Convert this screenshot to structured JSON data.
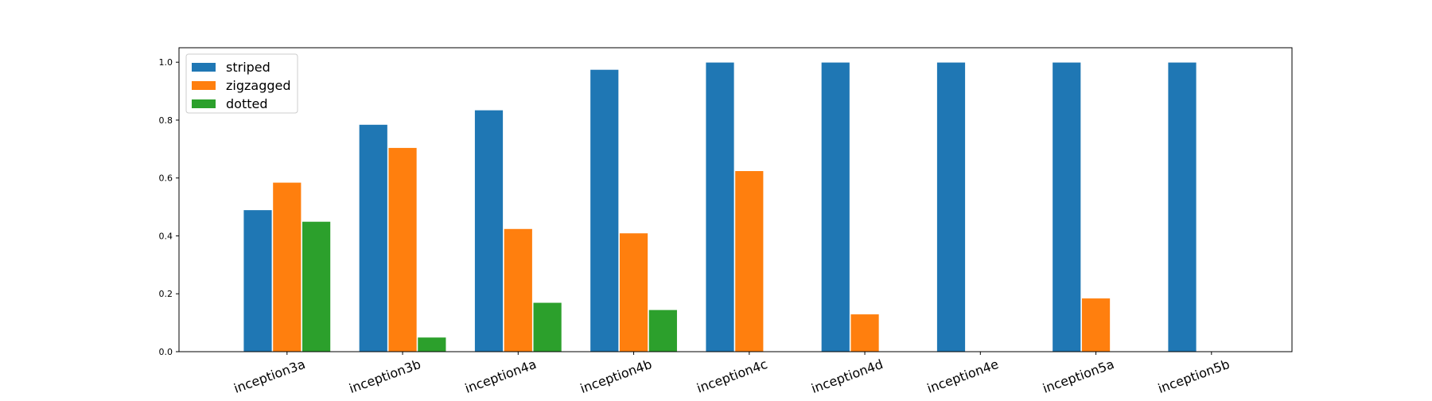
{
  "chart_data": {
    "type": "bar",
    "categories": [
      "inception3a",
      "inception3b",
      "inception4a",
      "inception4b",
      "inception4c",
      "inception4d",
      "inception4e",
      "inception5a",
      "inception5b"
    ],
    "series": [
      {
        "name": "striped",
        "color": "#1f77b4",
        "values": [
          0.49,
          0.785,
          0.835,
          0.975,
          1.0,
          1.0,
          1.0,
          1.0,
          1.0
        ]
      },
      {
        "name": "zigzagged",
        "color": "#ff7f0e",
        "values": [
          0.585,
          0.705,
          0.425,
          0.41,
          0.625,
          0.13,
          0.0,
          0.185,
          0.0
        ]
      },
      {
        "name": "dotted",
        "color": "#2ca02c",
        "values": [
          0.45,
          0.05,
          0.17,
          0.145,
          0.0,
          0.0,
          0.0,
          0.0,
          0.0
        ]
      }
    ],
    "yticks": [
      "0.0",
      "0.2",
      "0.4",
      "0.6",
      "0.8",
      "1.0"
    ],
    "ylim": [
      0,
      1.05
    ],
    "legend_position": "upper-left",
    "grid": false
  }
}
